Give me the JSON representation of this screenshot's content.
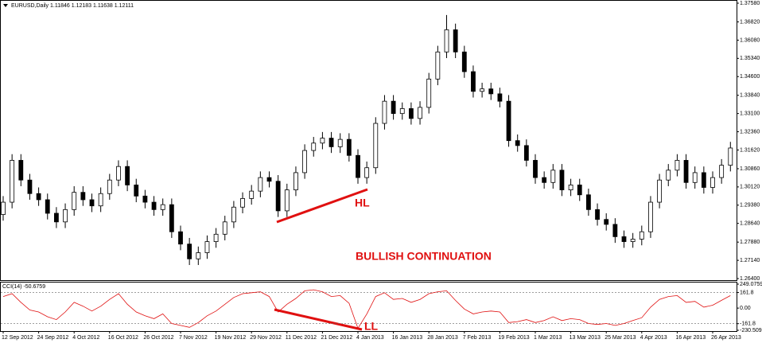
{
  "chart_data": [
    {
      "type": "candlestick",
      "title": "EURUSD,Daily  1.11846 1.12183 1.11638 1.12111",
      "categories": [
        "12 Sep 2012",
        null,
        null,
        null,
        "24 Sep 2012",
        null,
        null,
        null,
        "4 Oct 2012",
        null,
        null,
        null,
        "16 Oct 2012",
        null,
        null,
        null,
        "26 Oct 2012",
        null,
        null,
        null,
        "7 Nov 2012",
        null,
        null,
        null,
        "19 Nov 2012",
        null,
        null,
        null,
        "29 Nov 2012",
        null,
        null,
        null,
        "11 Dec 2012",
        null,
        null,
        null,
        "21 Dec 2012",
        null,
        null,
        null,
        "4 Jan 2013",
        null,
        null,
        null,
        "16 Jan 2013",
        null,
        null,
        null,
        "28 Jan 2013",
        null,
        null,
        null,
        "7 Feb 2013",
        null,
        null,
        null,
        "19 Feb 2013",
        null,
        null,
        null,
        "1 Mar 2013",
        null,
        null,
        null,
        "13 Mar 2013",
        null,
        null,
        null,
        "25 Mar 2013",
        null,
        null,
        null,
        "4 Apr 2013",
        null,
        null,
        null,
        "16 Apr 2013",
        null,
        null,
        null,
        "26 Apr 2013",
        null,
        null
      ],
      "open": [
        1.29,
        1.295,
        1.312,
        1.304,
        1.2985,
        1.296,
        1.2905,
        1.287,
        1.292,
        1.299,
        1.296,
        1.2935,
        1.2985,
        1.304,
        1.3095,
        1.302,
        1.2975,
        1.295,
        1.292,
        1.294,
        1.283,
        1.278,
        1.272,
        1.2745,
        1.279,
        1.282,
        1.287,
        1.293,
        1.2965,
        1.2995,
        1.305,
        1.3035,
        1.2915,
        1.3,
        1.307,
        1.316,
        1.319,
        1.321,
        1.3175,
        1.3205,
        1.314,
        1.305,
        1.309,
        1.327,
        1.336,
        1.331,
        1.333,
        1.329,
        1.3335,
        1.345,
        1.356,
        1.365,
        1.356,
        1.348,
        1.34,
        1.341,
        1.339,
        1.336,
        1.32,
        1.318,
        1.312,
        1.305,
        1.303,
        1.308,
        1.3,
        1.302,
        1.298,
        1.292,
        1.288,
        1.286,
        1.281,
        1.279,
        1.28,
        1.283,
        1.295,
        1.304,
        1.308,
        1.312,
        1.303,
        1.307,
        1.301,
        1.305,
        1.31
      ],
      "high": [
        1.2975,
        1.3145,
        1.3145,
        1.3065,
        1.301,
        1.2985,
        1.293,
        1.2945,
        1.3015,
        1.3015,
        1.2985,
        1.301,
        1.3065,
        1.312,
        1.312,
        1.3045,
        1.3,
        1.2975,
        1.2965,
        1.2965,
        1.2855,
        1.2805,
        1.277,
        1.2815,
        1.2845,
        1.2895,
        1.2955,
        1.299,
        1.302,
        1.3075,
        1.3075,
        1.306,
        1.3025,
        1.3095,
        1.3185,
        1.3215,
        1.3235,
        1.3235,
        1.323,
        1.323,
        1.3165,
        1.3115,
        1.3295,
        1.3385,
        1.3385,
        1.3355,
        1.3355,
        1.336,
        1.3475,
        1.3585,
        1.371,
        1.3675,
        1.3585,
        1.3505,
        1.3435,
        1.3435,
        1.3415,
        1.3385,
        1.3225,
        1.3205,
        1.3145,
        1.3075,
        1.3105,
        1.3105,
        1.3045,
        1.3045,
        1.3005,
        1.2945,
        1.2905,
        1.2885,
        1.2835,
        1.2825,
        1.2855,
        1.2975,
        1.3065,
        1.3105,
        1.3145,
        1.3145,
        1.3095,
        1.3095,
        1.3075,
        1.3125,
        1.3195
      ],
      "low": [
        1.2875,
        1.2925,
        1.3015,
        1.296,
        1.2935,
        1.288,
        1.2845,
        1.2845,
        1.2895,
        1.2935,
        1.291,
        1.291,
        1.296,
        1.3015,
        1.2995,
        1.295,
        1.2925,
        1.2895,
        1.2895,
        1.2805,
        1.2755,
        1.2695,
        1.2695,
        1.272,
        1.2765,
        1.2795,
        1.2845,
        1.2905,
        1.294,
        1.297,
        1.301,
        1.289,
        1.289,
        1.2975,
        1.3045,
        1.3135,
        1.3165,
        1.315,
        1.315,
        1.3115,
        1.3025,
        1.3025,
        1.3065,
        1.3245,
        1.3285,
        1.3285,
        1.3265,
        1.3265,
        1.331,
        1.3425,
        1.3535,
        1.3535,
        1.3455,
        1.3375,
        1.3375,
        1.3365,
        1.3335,
        1.3175,
        1.3155,
        1.3095,
        1.3025,
        1.3005,
        1.3005,
        1.2975,
        1.2975,
        1.2955,
        1.2895,
        1.2855,
        1.2835,
        1.2785,
        1.2765,
        1.2765,
        1.2775,
        1.2805,
        1.2925,
        1.3015,
        1.3055,
        1.3005,
        1.3005,
        1.2985,
        1.2985,
        1.3025,
        1.3075
      ],
      "close": [
        1.295,
        1.312,
        1.304,
        1.2985,
        1.296,
        1.2905,
        1.287,
        1.292,
        1.299,
        1.296,
        1.2935,
        1.2985,
        1.304,
        1.3095,
        1.302,
        1.2975,
        1.295,
        1.292,
        1.294,
        1.283,
        1.278,
        1.272,
        1.2745,
        1.279,
        1.282,
        1.287,
        1.293,
        1.2965,
        1.2995,
        1.305,
        1.3035,
        1.2915,
        1.3,
        1.307,
        1.316,
        1.319,
        1.321,
        1.3175,
        1.3205,
        1.314,
        1.305,
        1.309,
        1.327,
        1.336,
        1.331,
        1.333,
        1.329,
        1.3335,
        1.345,
        1.356,
        1.365,
        1.356,
        1.348,
        1.34,
        1.341,
        1.339,
        1.336,
        1.32,
        1.318,
        1.312,
        1.305,
        1.303,
        1.308,
        1.3,
        1.302,
        1.298,
        1.292,
        1.288,
        1.286,
        1.281,
        1.279,
        1.28,
        1.283,
        1.295,
        1.304,
        1.308,
        1.312,
        1.303,
        1.307,
        1.301,
        1.305,
        1.31,
        1.317
      ],
      "ylim": [
        1.264,
        1.3758
      ],
      "yticks": [
        {
          "value": 1.3758,
          "label": "1.37580"
        },
        {
          "value": 1.3682,
          "label": "1.36820"
        },
        {
          "value": 1.3608,
          "label": "1.36080"
        },
        {
          "value": 1.3534,
          "label": "1.35340"
        },
        {
          "value": 1.346,
          "label": "1.34600"
        },
        {
          "value": 1.3384,
          "label": "1.33840"
        },
        {
          "value": 1.331,
          "label": "1.33100"
        },
        {
          "value": 1.3236,
          "label": "1.32360"
        },
        {
          "value": 1.3162,
          "label": "1.31620"
        },
        {
          "value": 1.3086,
          "label": "1.30860"
        },
        {
          "value": 1.3012,
          "label": "1.30120"
        },
        {
          "value": 1.2938,
          "label": "1.29380"
        },
        {
          "value": 1.2864,
          "label": "1.28640"
        },
        {
          "value": 1.2788,
          "label": "1.27880"
        },
        {
          "value": 1.2714,
          "label": "1.27140"
        },
        {
          "value": 1.264,
          "label": "1.26400"
        }
      ],
      "annotations": [
        "HL",
        "BULLISH CONTINUATION"
      ],
      "annotation_color": "#e01010"
    },
    {
      "type": "line",
      "title": "CCI(14) -50.6759",
      "color": "#e01010",
      "values": [
        120,
        150,
        60,
        -20,
        -40,
        -90,
        -120,
        -40,
        60,
        20,
        -30,
        20,
        90,
        150,
        40,
        -40,
        -80,
        -110,
        -60,
        -160,
        -180,
        -200,
        -150,
        -80,
        -30,
        40,
        110,
        150,
        160,
        170,
        120,
        -40,
        40,
        100,
        180,
        190,
        170,
        120,
        130,
        50,
        -210,
        -60,
        120,
        160,
        90,
        100,
        60,
        90,
        150,
        170,
        180,
        80,
        -10,
        -60,
        -40,
        -30,
        -40,
        -150,
        -140,
        -120,
        -150,
        -130,
        -90,
        -130,
        -110,
        -120,
        -160,
        -170,
        -160,
        -180,
        -160,
        -130,
        -100,
        10,
        90,
        120,
        130,
        60,
        70,
        10,
        30,
        80,
        130
      ],
      "ylim": [
        -230.509,
        249.0759
      ],
      "yticks": [
        249.0759,
        161.8,
        {
          "value": 0,
          "label": "0.00"
        },
        -161.8,
        -230.509
      ],
      "levels": [
        161.8,
        -161.8
      ],
      "annotations": [
        "LL"
      ]
    }
  ]
}
